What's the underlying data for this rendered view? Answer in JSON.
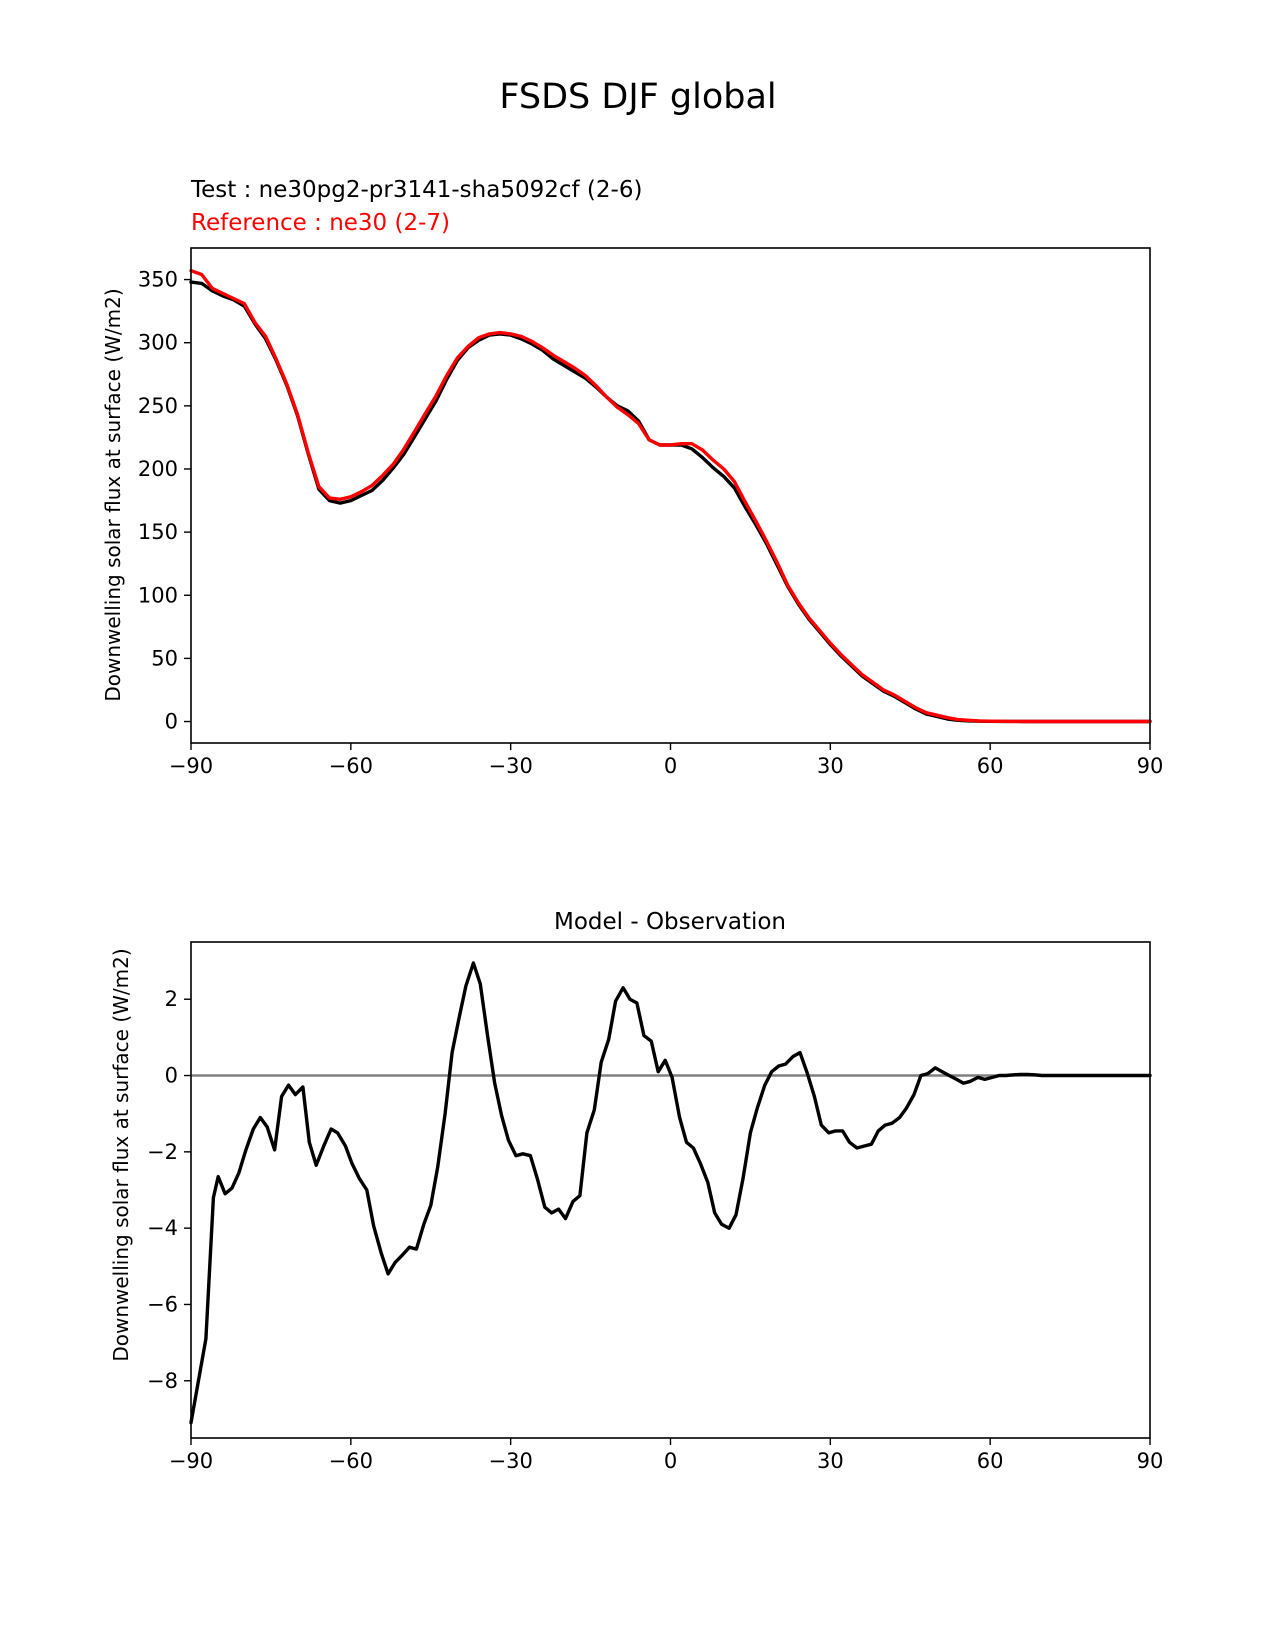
{
  "figure": {
    "title": "FSDS DJF global"
  },
  "chart_data": [
    {
      "type": "line",
      "title": "",
      "legend": [
        {
          "label": "Test : ne30pg2-pr3141-sha5092cf (2-6)",
          "color": "#000000"
        },
        {
          "label": "Reference : ne30 (2-7)",
          "color": "#ff0000"
        }
      ],
      "xlabel": "",
      "ylabel": "Downwelling solar flux at surface (W/m2)",
      "xlim": [
        -90,
        90
      ],
      "ylim": [
        -17,
        375
      ],
      "xticks": [
        -90,
        -60,
        -30,
        0,
        30,
        60,
        90
      ],
      "xtick_labels": [
        "−90",
        "−60",
        "−30",
        "0",
        "30",
        "60",
        "90"
      ],
      "yticks": [
        0,
        50,
        100,
        150,
        200,
        250,
        300,
        350
      ],
      "ytick_labels": [
        "0",
        "50",
        "100",
        "150",
        "200",
        "250",
        "300",
        "350"
      ],
      "series": [
        {
          "name": "Test : ne30pg2-pr3141-sha5092cf (2-6)",
          "color": "#000000",
          "x": [
            -90,
            -88,
            -86,
            -84,
            -82,
            -80,
            -78,
            -76,
            -74,
            -72,
            -70,
            -68,
            -66,
            -64,
            -62,
            -60,
            -58,
            -56,
            -54,
            -52,
            -50,
            -48,
            -46,
            -44,
            -42,
            -40,
            -38,
            -36,
            -34,
            -32,
            -30,
            -28,
            -26,
            -24,
            -22,
            -20,
            -18,
            -16,
            -14,
            -12,
            -10,
            -8,
            -6,
            -4,
            -2,
            0,
            2,
            4,
            6,
            8,
            10,
            12,
            14,
            16,
            18,
            20,
            22,
            24,
            26,
            28,
            30,
            32,
            34,
            36,
            38,
            40,
            42,
            44,
            46,
            48,
            50,
            52,
            54,
            56,
            58,
            60,
            62,
            64,
            66,
            68,
            70,
            72,
            74,
            76,
            78,
            80,
            82,
            84,
            86,
            88,
            90
          ],
          "values": [
            348,
            347,
            341,
            337,
            334,
            329,
            315,
            303,
            286,
            266,
            242,
            212,
            184,
            175,
            173,
            175,
            179,
            183,
            191,
            201,
            212,
            226,
            240,
            254,
            271,
            286,
            296,
            302,
            306,
            307,
            306,
            303,
            299,
            294,
            287,
            282,
            277,
            272,
            265,
            257,
            250,
            246,
            238,
            223,
            219,
            219,
            219,
            216,
            209,
            201,
            194,
            185,
            170,
            156,
            141,
            124,
            107,
            93,
            81,
            71,
            61,
            52,
            44,
            36,
            30,
            24,
            20,
            15,
            10,
            6,
            4,
            2,
            1,
            0.5,
            0.3,
            0.2,
            0.1,
            0.1,
            0,
            0,
            0,
            0,
            0,
            0,
            0,
            0,
            0,
            0,
            0,
            0,
            0
          ]
        },
        {
          "name": "Reference : ne30 (2-7)",
          "color": "#ff0000",
          "x": [
            -90,
            -88,
            -86,
            -84,
            -82,
            -80,
            -78,
            -76,
            -74,
            -72,
            -70,
            -68,
            -66,
            -64,
            -62,
            -60,
            -58,
            -56,
            -54,
            -52,
            -50,
            -48,
            -46,
            -44,
            -42,
            -40,
            -38,
            -36,
            -34,
            -32,
            -30,
            -28,
            -26,
            -24,
            -22,
            -20,
            -18,
            -16,
            -14,
            -12,
            -10,
            -8,
            -6,
            -4,
            -2,
            0,
            2,
            4,
            6,
            8,
            10,
            12,
            14,
            16,
            18,
            20,
            22,
            24,
            26,
            28,
            30,
            32,
            34,
            36,
            38,
            40,
            42,
            44,
            46,
            48,
            50,
            52,
            54,
            56,
            58,
            60,
            62,
            64,
            66,
            68,
            70,
            72,
            74,
            76,
            78,
            80,
            82,
            84,
            86,
            88,
            90
          ],
          "values": [
            357,
            354,
            343,
            339,
            335,
            331,
            316,
            305,
            287,
            267,
            243,
            213,
            186,
            177,
            176,
            178,
            182,
            187,
            195,
            204,
            216,
            230,
            244,
            258,
            274,
            288,
            297,
            304,
            307,
            308,
            307,
            305,
            301,
            296,
            290,
            285,
            280,
            274,
            266,
            257,
            249,
            243,
            236,
            223,
            219,
            219,
            220,
            220,
            215,
            207,
            200,
            190,
            174,
            159,
            143,
            126,
            108,
            94,
            82,
            72,
            62,
            53,
            45,
            37,
            31,
            25,
            21,
            16,
            11,
            7,
            5,
            3,
            1.5,
            1,
            0.5,
            0.3,
            0.2,
            0.1,
            0.1,
            0,
            0,
            0,
            0,
            0,
            0,
            0,
            0,
            0,
            0,
            0,
            0
          ]
        }
      ]
    },
    {
      "type": "line",
      "title": "Model - Observation",
      "xlabel": "",
      "ylabel": "Downwelling solar flux at surface (W/m2)",
      "xlim": [
        -90,
        90
      ],
      "ylim": [
        -9.5,
        3.5
      ],
      "xticks": [
        -90,
        -60,
        -30,
        0,
        30,
        60,
        90
      ],
      "xtick_labels": [
        "−90",
        "−60",
        "−30",
        "0",
        "30",
        "60",
        "90"
      ],
      "yticks": [
        -8,
        -6,
        -4,
        -2,
        0,
        2
      ],
      "ytick_labels": [
        "−8",
        "−6",
        "−4",
        "−2",
        "0",
        "2"
      ],
      "zero_line_color": "#808080",
      "series": [
        {
          "name": "Model - Observation",
          "color": "#000000",
          "x": [
            -90,
            -87.2,
            -85.8,
            -84.9,
            -83.6,
            -82.3,
            -81,
            -79.7,
            -78.3,
            -77,
            -75.7,
            -74.3,
            -73,
            -71.7,
            -70.4,
            -69,
            -67.8,
            -66.5,
            -65.1,
            -63.7,
            -62.5,
            -61,
            -59.8,
            -58.4,
            -57,
            -55.7,
            -54.3,
            -53,
            -51.7,
            -50.3,
            -49,
            -47.7,
            -46.3,
            -45,
            -43.7,
            -42.3,
            -41,
            -39.7,
            -38.4,
            -37,
            -35.7,
            -34.3,
            -33,
            -31.7,
            -30.4,
            -29,
            -27.7,
            -26.3,
            -25,
            -23.6,
            -22.3,
            -21,
            -19.7,
            -18.3,
            -17,
            -15.7,
            -14.3,
            -13,
            -11.6,
            -10.3,
            -8.9,
            -7.6,
            -6.3,
            -5,
            -3.6,
            -2.3,
            -1,
            0.3,
            1.7,
            3,
            4.3,
            5.6,
            7,
            8.3,
            9.6,
            11,
            12.3,
            13.6,
            15,
            16.3,
            17.7,
            19,
            20.3,
            21.6,
            23,
            24.3,
            25.7,
            27,
            28.3,
            29.7,
            31,
            32.3,
            33.6,
            35,
            36.3,
            37.7,
            39,
            40.3,
            41.6,
            43,
            44.3,
            45.7,
            47,
            48.3,
            49.7,
            51,
            52.3,
            53.7,
            55,
            56.3,
            57.7,
            59,
            60.4,
            61.7,
            63,
            64.4,
            65.7,
            67,
            68.4,
            69.7,
            71,
            72.4,
            73.7,
            75,
            76.4,
            77.7,
            79,
            80.4,
            81.7,
            83,
            84.4,
            85.7,
            87,
            88.4,
            90
          ],
          "values": [
            -9.1,
            -6.9,
            -3.2,
            -2.65,
            -3.1,
            -2.95,
            -2.55,
            -1.95,
            -1.4,
            -1.1,
            -1.35,
            -1.95,
            -0.55,
            -0.25,
            -0.5,
            -0.3,
            -1.75,
            -2.35,
            -1.85,
            -1.4,
            -1.5,
            -1.85,
            -2.3,
            -2.7,
            -3.0,
            -3.95,
            -4.65,
            -5.2,
            -4.9,
            -4.7,
            -4.5,
            -4.55,
            -3.9,
            -3.4,
            -2.4,
            -1.0,
            0.6,
            1.5,
            2.35,
            2.95,
            2.4,
            1.0,
            -0.2,
            -1.05,
            -1.7,
            -2.1,
            -2.05,
            -2.1,
            -2.7,
            -3.45,
            -3.6,
            -3.5,
            -3.75,
            -3.3,
            -3.15,
            -1.5,
            -0.9,
            0.35,
            0.95,
            1.95,
            2.3,
            2.0,
            1.9,
            1.05,
            0.9,
            0.1,
            0.4,
            -0.05,
            -1.1,
            -1.75,
            -1.9,
            -2.3,
            -2.8,
            -3.6,
            -3.9,
            -4.0,
            -3.65,
            -2.7,
            -1.5,
            -0.85,
            -0.25,
            0.1,
            0.25,
            0.3,
            0.5,
            0.6,
            0.05,
            -0.55,
            -1.3,
            -1.5,
            -1.45,
            -1.45,
            -1.75,
            -1.9,
            -1.85,
            -1.8,
            -1.45,
            -1.3,
            -1.25,
            -1.1,
            -0.85,
            -0.5,
            0.0,
            0.05,
            0.2,
            0.1,
            0.0,
            -0.1,
            -0.2,
            -0.15,
            -0.05,
            -0.1,
            -0.05,
            0.0,
            0.0,
            0.02,
            0.03,
            0.03,
            0.02,
            0.0,
            0.0,
            0.0,
            0.0,
            0.0,
            0.0,
            0.0,
            0.0,
            0.0,
            0.0,
            0.0,
            0.0,
            0.0,
            0.0,
            0.0,
            0.0
          ]
        }
      ]
    }
  ]
}
